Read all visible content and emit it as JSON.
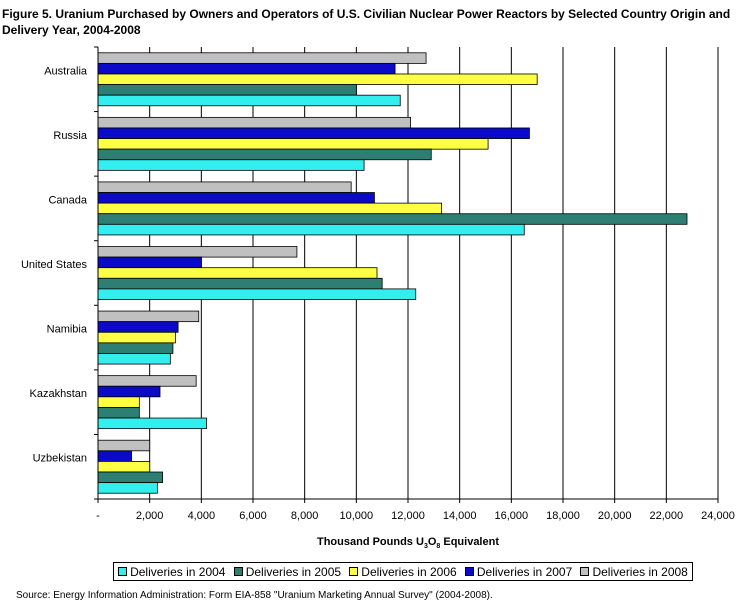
{
  "chart_data": {
    "type": "bar",
    "orientation": "horizontal",
    "title": "Figure 5. Uranium Purchased by Owners and Operators of U.S. Civilian Nuclear Power Reactors by Selected Country Origin and Delivery Year, 2004-2008",
    "xlabel_parts": {
      "pre": "Thousand Pounds U",
      "sub1": "3",
      "mid": "O",
      "sub2": "8",
      "post": " Equivalent"
    },
    "xlim": [
      0,
      24000
    ],
    "xticks": [
      0,
      2000,
      4000,
      6000,
      8000,
      10000,
      12000,
      14000,
      16000,
      18000,
      20000,
      22000,
      24000
    ],
    "xtick_labels": [
      "-",
      "2,000",
      "4,000",
      "6,000",
      "8,000",
      "10,000",
      "12,000",
      "14,000",
      "16,000",
      "18,000",
      "20,000",
      "22,000",
      "24,000"
    ],
    "grid": true,
    "legend_position": "bottom",
    "categories": [
      "Australia",
      "Russia",
      "Canada",
      "United States",
      "Namibia",
      "Kazakhstan",
      "Uzbekistan"
    ],
    "series": [
      {
        "name": "Deliveries in 2004",
        "color": "#33EEEE",
        "values": [
          11700,
          10300,
          16500,
          12300,
          2800,
          4200,
          2300
        ]
      },
      {
        "name": "Deliveries in 2005",
        "color": "#2E7F73",
        "values": [
          10000,
          12900,
          22800,
          11000,
          2900,
          1600,
          2500
        ]
      },
      {
        "name": "Deliveries in 2006",
        "color": "#FFFF44",
        "values": [
          17000,
          15100,
          13300,
          10800,
          3000,
          1600,
          2000
        ]
      },
      {
        "name": "Deliveries in 2007",
        "color": "#0A0AC8",
        "values": [
          11500,
          16700,
          10700,
          4000,
          3100,
          2400,
          1300
        ]
      },
      {
        "name": "Deliveries in 2008",
        "color": "#C0C0C0",
        "values": [
          12700,
          12100,
          9800,
          7700,
          3900,
          3800,
          2000
        ]
      }
    ]
  },
  "source": "Source: Energy Information Administration: Form EIA-858 \"Uranium Marketing Annual Survey\" (2004-2008)."
}
